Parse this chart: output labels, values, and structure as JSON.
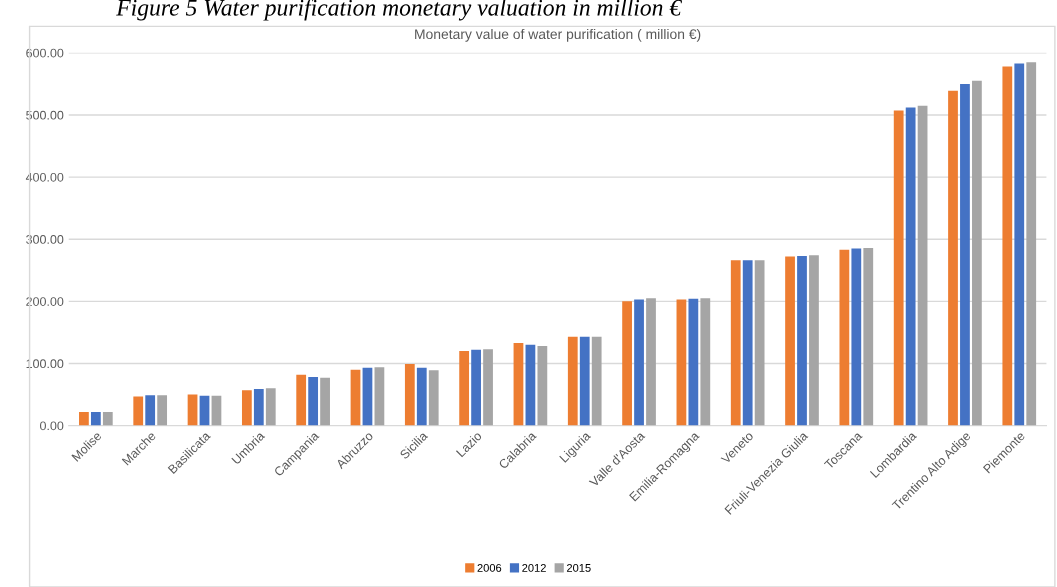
{
  "chart_data": {
    "type": "bar",
    "title": "Monetary value of water purification ( million €)",
    "annotations": [
      "Figure 5 Water purification monetary valuation in million €"
    ],
    "categories": [
      "Molise",
      "Marche",
      "Basilicata",
      "Umbria",
      "Campania",
      "Abruzzo",
      "Sicilia",
      "Lazio",
      "Calabria",
      "Liguria",
      "Valle d'Aosta",
      "Emilia-Romagna",
      "Veneto",
      "Friuli-Venezia Giulia",
      "Toscana",
      "Lombardia",
      "Trentino Alto Adige",
      "Piemonte"
    ],
    "series": [
      {
        "name": "2006",
        "color": "#ed7d31",
        "values": [
          22,
          47,
          50,
          57,
          82,
          90,
          99,
          120,
          133,
          143,
          200,
          203,
          266,
          272,
          283,
          507,
          539,
          578
        ]
      },
      {
        "name": "2012",
        "color": "#4472c4",
        "values": [
          22,
          49,
          48,
          59,
          78,
          93,
          93,
          122,
          130,
          143,
          203,
          204,
          266,
          273,
          285,
          512,
          550,
          583
        ]
      },
      {
        "name": "2015",
        "color": "#a5a5a5",
        "values": [
          22,
          49,
          48,
          60,
          77,
          94,
          89,
          123,
          128,
          143,
          205,
          205,
          266,
          274,
          286,
          515,
          555,
          585
        ]
      }
    ],
    "ylim": [
      0,
      600
    ],
    "yticks": [
      {
        "value": 0,
        "label": "0.00"
      },
      {
        "value": 100,
        "label": "100.00"
      },
      {
        "value": 200,
        "label": "200.00"
      },
      {
        "value": 300,
        "label": "300.00"
      },
      {
        "value": 400,
        "label": "400.00"
      },
      {
        "value": 500,
        "label": "500.00"
      },
      {
        "value": 600,
        "label": "600.00"
      }
    ],
    "grid": "y",
    "legend": "bottom"
  }
}
